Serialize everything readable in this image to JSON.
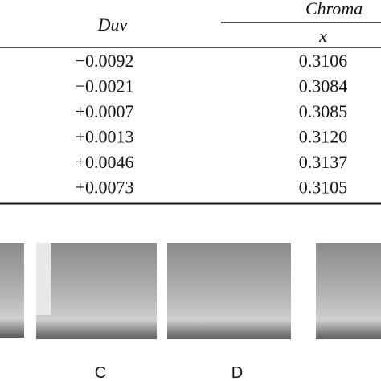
{
  "table": {
    "headers": {
      "duv": "Duv",
      "chromaticity": "Chroma",
      "x": "x"
    },
    "rows": [
      [
        "−0.0092",
        "0.3106"
      ],
      [
        "−0.0021",
        "0.3084"
      ],
      [
        "+0.0007",
        "0.3085"
      ],
      [
        "+0.0013",
        "0.3120"
      ],
      [
        "+0.0046",
        "0.3137"
      ],
      [
        "+0.0073",
        "0.3105"
      ]
    ]
  },
  "figure": {
    "labels": [
      "C",
      "D"
    ]
  }
}
